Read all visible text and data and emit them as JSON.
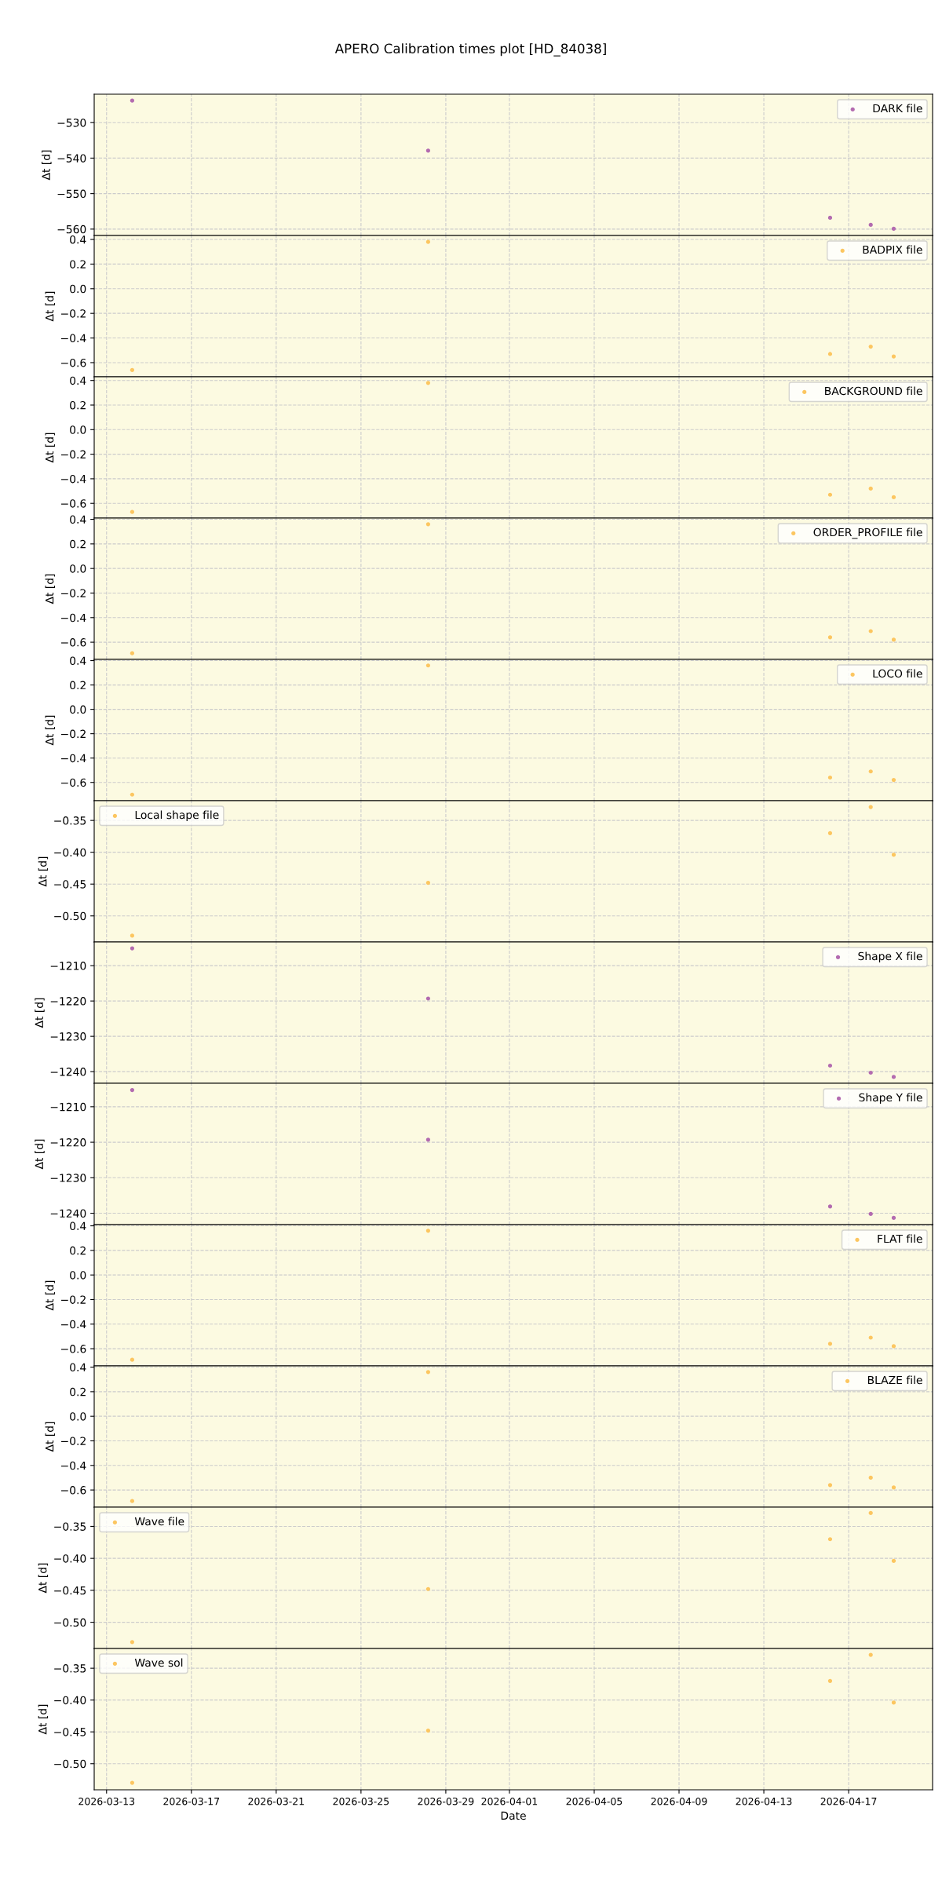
{
  "chart_data": [
    {
      "type": "scatter",
      "title": "APERO Calibration times plot [HD_84038]",
      "ylabel": "Δt [d]",
      "x": [
        "2026-03-14T05:00",
        "2026-03-28T04:00",
        "2026-04-16T03:00",
        "2026-04-18T01:00",
        "2026-04-19T03:00"
      ],
      "series": [
        {
          "name": "DARK file",
          "color": "#b36bb0",
          "values": [
            -523.8,
            -537.9,
            -556.8,
            -558.8,
            -559.9
          ]
        }
      ],
      "xlim": [
        "2026-03-12T10:00",
        "2026-04-20T23:00"
      ],
      "xticks": [
        "2026-03-13",
        "2026-03-17",
        "2026-03-21",
        "2026-03-25",
        "2026-03-29",
        "2026-04-01",
        "2026-04-05",
        "2026-04-09",
        "2026-04-13",
        "2026-04-17"
      ],
      "ylim": [
        -561.8,
        -522.0
      ],
      "yticks": [
        -560,
        -550,
        -540,
        -530
      ],
      "grid": true,
      "legend": "top right",
      "marker": "circle",
      "tick_labels": "y"
    },
    {
      "type": "scatter",
      "ylabel": "Δt [d]",
      "x": [
        "2026-03-14T05:00",
        "2026-03-28T04:00",
        "2026-04-16T03:00",
        "2026-04-18T01:00",
        "2026-04-19T03:00"
      ],
      "series": [
        {
          "name": "BADPIX file",
          "color": "#fcc660",
          "values": [
            -0.66,
            0.38,
            -0.53,
            -0.47,
            -0.55
          ]
        }
      ],
      "xlim": [
        "2026-03-12T10:00",
        "2026-04-20T23:00"
      ],
      "xticks": [
        "2026-03-13",
        "2026-03-17",
        "2026-03-21",
        "2026-03-25",
        "2026-03-29",
        "2026-04-01",
        "2026-04-05",
        "2026-04-09",
        "2026-04-13",
        "2026-04-17"
      ],
      "ylim": [
        -0.715,
        0.432
      ],
      "yticks": [
        -0.6,
        -0.4,
        -0.2,
        {
          "value": 0,
          "label": "0.0"
        },
        0.2,
        0.4
      ],
      "grid": true,
      "legend": "top right",
      "marker": "circle",
      "tick_labels": "y"
    },
    {
      "type": "scatter",
      "ylabel": "Δt [d]",
      "x": [
        "2026-03-14T05:00",
        "2026-03-28T04:00",
        "2026-04-16T03:00",
        "2026-04-18T01:00",
        "2026-04-19T03:00"
      ],
      "series": [
        {
          "name": "BACKGROUND file",
          "color": "#fcc660",
          "values": [
            -0.67,
            0.38,
            -0.53,
            -0.48,
            -0.55
          ]
        }
      ],
      "xlim": [
        "2026-03-12T10:00",
        "2026-04-20T23:00"
      ],
      "xticks": [
        "2026-03-13",
        "2026-03-17",
        "2026-03-21",
        "2026-03-25",
        "2026-03-29",
        "2026-04-01",
        "2026-04-05",
        "2026-04-09",
        "2026-04-13",
        "2026-04-17"
      ],
      "ylim": [
        -0.72,
        0.43
      ],
      "yticks": [
        -0.6,
        -0.4,
        -0.2,
        {
          "value": 0,
          "label": "0.0"
        },
        0.2,
        0.4
      ],
      "grid": true,
      "legend": "top right",
      "marker": "circle",
      "tick_labels": "y"
    },
    {
      "type": "scatter",
      "ylabel": "Δt [d]",
      "x": [
        "2026-03-14T05:00",
        "2026-03-28T04:00",
        "2026-04-16T03:00",
        "2026-04-18T01:00",
        "2026-04-19T03:00"
      ],
      "series": [
        {
          "name": "ORDER_PROFILE file",
          "color": "#fcc660",
          "values": [
            -0.69,
            0.36,
            -0.56,
            -0.51,
            -0.58
          ]
        }
      ],
      "xlim": [
        "2026-03-12T10:00",
        "2026-04-20T23:00"
      ],
      "xticks": [
        "2026-03-13",
        "2026-03-17",
        "2026-03-21",
        "2026-03-25",
        "2026-03-29",
        "2026-04-01",
        "2026-04-05",
        "2026-04-09",
        "2026-04-13",
        "2026-04-17"
      ],
      "ylim": [
        -0.74,
        0.41
      ],
      "yticks": [
        -0.6,
        -0.4,
        -0.2,
        {
          "value": 0,
          "label": "0.0"
        },
        0.2,
        0.4
      ],
      "grid": true,
      "legend": "top right",
      "marker": "circle",
      "tick_labels": "y"
    },
    {
      "type": "scatter",
      "ylabel": "Δt [d]",
      "x": [
        "2026-03-14T05:00",
        "2026-03-28T04:00",
        "2026-04-16T03:00",
        "2026-04-18T01:00",
        "2026-04-19T03:00"
      ],
      "series": [
        {
          "name": "LOCO file",
          "color": "#fcc660",
          "values": [
            -0.7,
            0.36,
            -0.56,
            -0.51,
            -0.58
          ]
        }
      ],
      "xlim": [
        "2026-03-12T10:00",
        "2026-04-20T23:00"
      ],
      "xticks": [
        "2026-03-13",
        "2026-03-17",
        "2026-03-21",
        "2026-03-25",
        "2026-03-29",
        "2026-04-01",
        "2026-04-05",
        "2026-04-09",
        "2026-04-13",
        "2026-04-17"
      ],
      "ylim": [
        -0.75,
        0.41
      ],
      "yticks": [
        -0.6,
        -0.4,
        -0.2,
        {
          "value": 0,
          "label": "0.0"
        },
        0.2,
        0.4
      ],
      "grid": true,
      "legend": "top right",
      "marker": "circle",
      "tick_labels": "y"
    },
    {
      "type": "scatter",
      "ylabel": "Δt [d]",
      "x": [
        "2026-03-14T05:00",
        "2026-03-28T04:00",
        "2026-04-16T03:00",
        "2026-04-18T01:00",
        "2026-04-19T03:00"
      ],
      "series": [
        {
          "name": "Local shape file",
          "color": "#fcc660",
          "values": [
            -0.531,
            -0.448,
            -0.37,
            -0.329,
            -0.404
          ]
        }
      ],
      "xlim": [
        "2026-03-12T10:00",
        "2026-04-20T23:00"
      ],
      "xticks": [
        "2026-03-13",
        "2026-03-17",
        "2026-03-21",
        "2026-03-25",
        "2026-03-29",
        "2026-04-01",
        "2026-04-05",
        "2026-04-09",
        "2026-04-13",
        "2026-04-17"
      ],
      "ylim": [
        -0.541,
        -0.319
      ],
      "yticks": [
        {
          "value": -0.5,
          "label": "−0.50"
        },
        -0.45,
        {
          "value": -0.4,
          "label": "−0.40"
        },
        -0.35
      ],
      "grid": true,
      "legend": "top left",
      "marker": "circle",
      "tick_labels": "y"
    },
    {
      "type": "scatter",
      "ylabel": "Δt [d]",
      "x": [
        "2026-03-14T05:00",
        "2026-03-28T04:00",
        "2026-04-16T03:00",
        "2026-04-18T01:00",
        "2026-04-19T03:00"
      ],
      "series": [
        {
          "name": "Shape X file",
          "color": "#b36bb0",
          "values": [
            -1205.1,
            -1219.3,
            -1238.3,
            -1240.3,
            -1241.5
          ]
        }
      ],
      "xlim": [
        "2026-03-12T10:00",
        "2026-04-20T23:00"
      ],
      "xticks": [
        "2026-03-13",
        "2026-03-17",
        "2026-03-21",
        "2026-03-25",
        "2026-03-29",
        "2026-04-01",
        "2026-04-05",
        "2026-04-09",
        "2026-04-13",
        "2026-04-17"
      ],
      "ylim": [
        -1243.3,
        -1203.3
      ],
      "yticks": [
        -1240,
        -1230,
        -1220,
        -1210
      ],
      "grid": true,
      "legend": "top right",
      "marker": "circle",
      "tick_labels": "y"
    },
    {
      "type": "scatter",
      "ylabel": "Δt [d]",
      "x": [
        "2026-03-14T05:00",
        "2026-03-28T04:00",
        "2026-04-16T03:00",
        "2026-04-18T01:00",
        "2026-04-19T03:00"
      ],
      "series": [
        {
          "name": "Shape Y file",
          "color": "#b36bb0",
          "values": [
            -1205.3,
            -1219.3,
            -1238.1,
            -1240.2,
            -1241.3
          ]
        }
      ],
      "xlim": [
        "2026-03-12T10:00",
        "2026-04-20T23:00"
      ],
      "xticks": [
        "2026-03-13",
        "2026-03-17",
        "2026-03-21",
        "2026-03-25",
        "2026-03-29",
        "2026-04-01",
        "2026-04-05",
        "2026-04-09",
        "2026-04-13",
        "2026-04-17"
      ],
      "ylim": [
        -1243.2,
        -1203.4
      ],
      "yticks": [
        -1240,
        -1230,
        -1220,
        -1210
      ],
      "grid": true,
      "legend": "top right",
      "marker": "circle",
      "tick_labels": "y"
    },
    {
      "type": "scatter",
      "ylabel": "Δt [d]",
      "x": [
        "2026-03-14T05:00",
        "2026-03-28T04:00",
        "2026-04-16T03:00",
        "2026-04-18T01:00",
        "2026-04-19T03:00"
      ],
      "series": [
        {
          "name": "FLAT file",
          "color": "#fcc660",
          "values": [
            -0.69,
            0.36,
            -0.56,
            -0.51,
            -0.58
          ]
        }
      ],
      "xlim": [
        "2026-03-12T10:00",
        "2026-04-20T23:00"
      ],
      "xticks": [
        "2026-03-13",
        "2026-03-17",
        "2026-03-21",
        "2026-03-25",
        "2026-03-29",
        "2026-04-01",
        "2026-04-05",
        "2026-04-09",
        "2026-04-13",
        "2026-04-17"
      ],
      "ylim": [
        -0.74,
        0.41
      ],
      "yticks": [
        -0.6,
        -0.4,
        -0.2,
        {
          "value": 0,
          "label": "0.0"
        },
        0.2,
        0.4
      ],
      "grid": true,
      "legend": "top right",
      "marker": "circle",
      "tick_labels": "y"
    },
    {
      "type": "scatter",
      "ylabel": "Δt [d]",
      "x": [
        "2026-03-14T05:00",
        "2026-03-28T04:00",
        "2026-04-16T03:00",
        "2026-04-18T01:00",
        "2026-04-19T03:00"
      ],
      "series": [
        {
          "name": "BLAZE file",
          "color": "#fcc660",
          "values": [
            -0.69,
            0.36,
            -0.56,
            -0.5,
            -0.58
          ]
        }
      ],
      "xlim": [
        "2026-03-12T10:00",
        "2026-04-20T23:00"
      ],
      "xticks": [
        "2026-03-13",
        "2026-03-17",
        "2026-03-21",
        "2026-03-25",
        "2026-03-29",
        "2026-04-01",
        "2026-04-05",
        "2026-04-09",
        "2026-04-13",
        "2026-04-17"
      ],
      "ylim": [
        -0.74,
        0.41
      ],
      "yticks": [
        -0.6,
        -0.4,
        -0.2,
        {
          "value": 0,
          "label": "0.0"
        },
        0.2,
        0.4
      ],
      "grid": true,
      "legend": "top right",
      "marker": "circle",
      "tick_labels": "y"
    },
    {
      "type": "scatter",
      "ylabel": "Δt [d]",
      "x": [
        "2026-03-14T05:00",
        "2026-03-28T04:00",
        "2026-04-16T03:00",
        "2026-04-18T01:00",
        "2026-04-19T03:00"
      ],
      "series": [
        {
          "name": "Wave file",
          "color": "#fcc660",
          "values": [
            -0.531,
            -0.448,
            -0.37,
            -0.329,
            -0.404
          ]
        }
      ],
      "xlim": [
        "2026-03-12T10:00",
        "2026-04-20T23:00"
      ],
      "xticks": [
        "2026-03-13",
        "2026-03-17",
        "2026-03-21",
        "2026-03-25",
        "2026-03-29",
        "2026-04-01",
        "2026-04-05",
        "2026-04-09",
        "2026-04-13",
        "2026-04-17"
      ],
      "ylim": [
        -0.541,
        -0.32
      ],
      "yticks": [
        {
          "value": -0.5,
          "label": "−0.50"
        },
        -0.45,
        {
          "value": -0.4,
          "label": "−0.40"
        },
        -0.35
      ],
      "grid": true,
      "legend": "top left",
      "marker": "circle",
      "tick_labels": "y"
    },
    {
      "type": "scatter",
      "ylabel": "Δt [d]",
      "xlabel": "Date",
      "x": [
        "2026-03-14T05:00",
        "2026-03-28T04:00",
        "2026-04-16T03:00",
        "2026-04-18T01:00",
        "2026-04-19T03:00"
      ],
      "series": [
        {
          "name": "Wave sol",
          "color": "#fcc660",
          "values": [
            -0.53,
            -0.448,
            -0.37,
            -0.329,
            -0.404
          ]
        }
      ],
      "xlim": [
        "2026-03-12T10:00",
        "2026-04-20T23:00"
      ],
      "xticks": [
        "2026-03-13",
        "2026-03-17",
        "2026-03-21",
        "2026-03-25",
        "2026-03-29",
        "2026-04-01",
        "2026-04-05",
        "2026-04-09",
        "2026-04-13",
        "2026-04-17"
      ],
      "ylim": [
        -0.541,
        -0.319
      ],
      "yticks": [
        {
          "value": -0.5,
          "label": "−0.50"
        },
        -0.45,
        {
          "value": -0.4,
          "label": "−0.40"
        },
        -0.35
      ],
      "grid": true,
      "legend": "top left",
      "marker": "circle"
    }
  ]
}
